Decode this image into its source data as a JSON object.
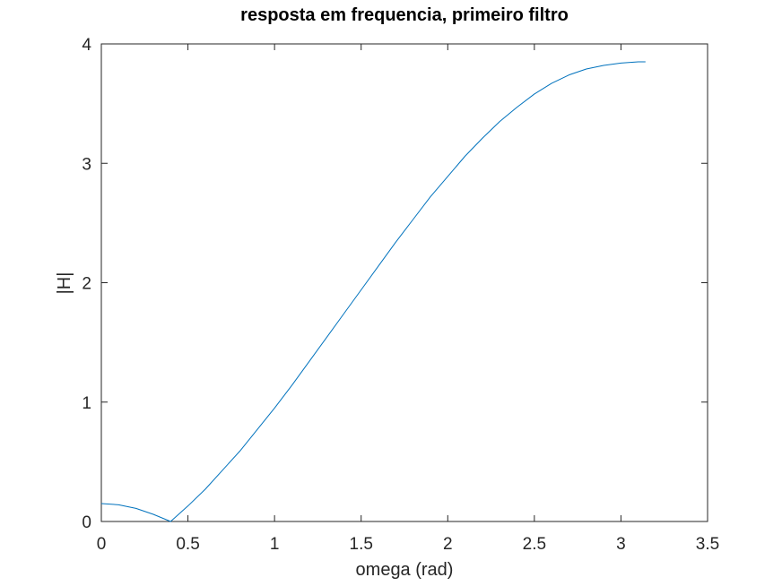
{
  "chart_data": {
    "type": "line",
    "title": "resposta em frequencia, primeiro filtro",
    "xlabel": "omega (rad)",
    "ylabel": "|H|",
    "xlim": [
      0,
      3.5
    ],
    "ylim": [
      0,
      4
    ],
    "xticks": [
      0,
      0.5,
      1,
      1.5,
      2,
      2.5,
      3,
      3.5
    ],
    "xtick_labels": [
      "0",
      "0.5",
      "1",
      "1.5",
      "2",
      "2.5",
      "3",
      "3.5"
    ],
    "yticks": [
      0,
      1,
      2,
      3,
      4
    ],
    "ytick_labels": [
      "0",
      "1",
      "2",
      "3",
      "4"
    ],
    "grid": false,
    "series": [
      {
        "color": "#0072bd",
        "x": [
          0,
          0.1,
          0.2,
          0.3,
          0.4,
          0.5,
          0.6,
          0.7,
          0.8,
          0.9,
          1.0,
          1.1,
          1.2,
          1.3,
          1.4,
          1.5,
          1.6,
          1.7,
          1.8,
          1.9,
          2.0,
          2.1,
          2.2,
          2.3,
          2.4,
          2.5,
          2.6,
          2.7,
          2.8,
          2.9,
          3.0,
          3.1,
          3.1416
        ],
        "y": [
          0.15,
          0.14,
          0.11,
          0.06,
          0.0,
          0.13,
          0.27,
          0.43,
          0.59,
          0.77,
          0.95,
          1.14,
          1.34,
          1.54,
          1.74,
          1.94,
          2.14,
          2.34,
          2.53,
          2.72,
          2.89,
          3.06,
          3.21,
          3.35,
          3.47,
          3.58,
          3.67,
          3.74,
          3.79,
          3.82,
          3.84,
          3.85,
          3.85
        ]
      }
    ]
  }
}
